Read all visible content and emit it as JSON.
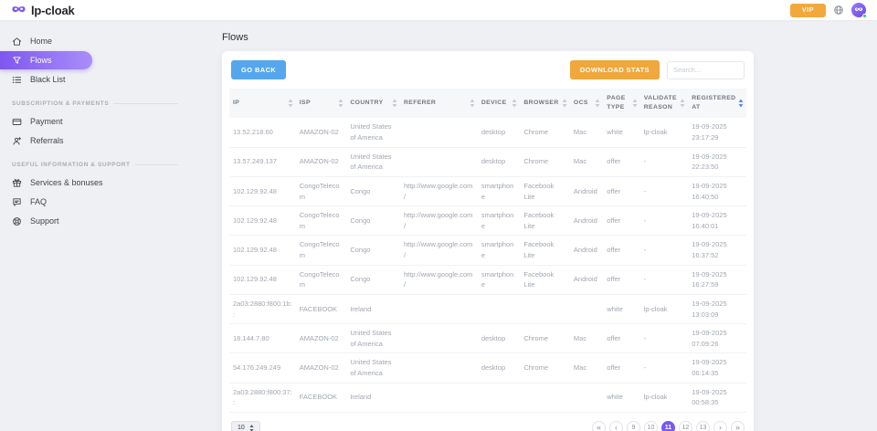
{
  "topbar": {
    "logo": {
      "text": "lp-cloak",
      "icon": "mask-icon"
    },
    "vip_label": "VIP",
    "language_icon": "globe-icon",
    "avatar": {
      "icon": "mask-icon",
      "online": true
    }
  },
  "sidebar": {
    "sections": [
      {
        "title": "",
        "items": [
          {
            "label": "Home",
            "icon": "home-icon",
            "active": false
          },
          {
            "label": "Flows",
            "icon": "flows-icon",
            "active": true
          },
          {
            "label": "Black List",
            "icon": "list-icon",
            "active": false
          }
        ]
      },
      {
        "title": "Subscription & Payments",
        "items": [
          {
            "label": "Payment",
            "icon": "payment-icon",
            "active": false
          },
          {
            "label": "Referrals",
            "icon": "referrals-icon",
            "active": false
          }
        ]
      },
      {
        "title": "Useful information & support",
        "items": [
          {
            "label": "Services & bonuses",
            "icon": "services-icon",
            "active": false
          },
          {
            "label": "FAQ",
            "icon": "faq-icon",
            "active": false
          },
          {
            "label": "Support",
            "icon": "support-icon",
            "active": false
          }
        ]
      }
    ]
  },
  "main": {
    "page_title": "Flows",
    "toolbar": {
      "go_back_label": "GO BACK",
      "download_stats_label": "DOWNLOAD STATS",
      "search_placeholder": "Search..."
    },
    "table": {
      "columns": [
        {
          "label": "IP",
          "sort_active": false
        },
        {
          "label": "ISP",
          "sort_active": false
        },
        {
          "label": "Country",
          "sort_active": false
        },
        {
          "label": "Referer",
          "sort_active": false
        },
        {
          "label": "Device",
          "sort_active": false
        },
        {
          "label": "Browser",
          "sort_active": false
        },
        {
          "label": "OCS",
          "sort_active": false
        },
        {
          "label": "Page Type",
          "sort_active": false
        },
        {
          "label": "Validate Reason",
          "sort_active": false
        },
        {
          "label": "Registered At",
          "sort_active": true
        }
      ],
      "rows": [
        [
          "13.52.218.60",
          "AMAZON-02",
          "United States of America",
          "",
          "desktop",
          "Chrome",
          "Mac",
          "white",
          "lp-cloak",
          "19-09-2025 23:17:29"
        ],
        [
          "13.57.249.137",
          "AMAZON-02",
          "United States of America",
          "",
          "desktop",
          "Chrome",
          "Mac",
          "offer",
          "-",
          "19-09-2025 22:23:50"
        ],
        [
          "102.129.92.48",
          "CongoTelecom",
          "Congo",
          "http://www.google.com/",
          "smartphone",
          "Facebook Lite",
          "Android",
          "offer",
          "-",
          "19-09-2025 16:40:50"
        ],
        [
          "102.129.92.48",
          "CongoTelecom",
          "Congo",
          "http://www.google.com/",
          "smartphone",
          "Facebook Lite",
          "Android",
          "offer",
          "-",
          "19-09-2025 16:40:01"
        ],
        [
          "102.129.92.48",
          "CongoTelecom",
          "Congo",
          "http://www.google.com/",
          "smartphone",
          "Facebook Lite",
          "Android",
          "offer",
          "-",
          "19-09-2025 16:37:52"
        ],
        [
          "102.129.92.48",
          "CongoTelecom",
          "Congo",
          "http://www.google.com/",
          "smartphone",
          "Facebook Lite",
          "Android",
          "offer",
          "-",
          "19-09-2025 16:27:59"
        ],
        [
          "2a03:2880:f800:1b::",
          "FACEBOOK",
          "Ireland",
          "",
          "",
          "",
          "",
          "white",
          "lp-cloak",
          "19-09-2025 13:03:09"
        ],
        [
          "18.144.7.80",
          "AMAZON-02",
          "United States of America",
          "",
          "desktop",
          "Chrome",
          "Mac",
          "offer",
          "-",
          "19-09-2025 07:09:26"
        ],
        [
          "54.176.249.249",
          "AMAZON-02",
          "United States of America",
          "",
          "desktop",
          "Chrome",
          "Mac",
          "offer",
          "-",
          "19-09-2025 06:14:35"
        ],
        [
          "2a03:2880:f800:37::",
          "FACEBOOK",
          "Ireland",
          "",
          "",
          "",
          "",
          "white",
          "lp-cloak",
          "19-09-2025 00:58:35"
        ]
      ]
    },
    "footer": {
      "page_size": "10",
      "pagination": {
        "first": "«",
        "prev": "‹",
        "pages": [
          "9",
          "10",
          "11",
          "12",
          "13"
        ],
        "active": "11",
        "next": "›",
        "last": "»"
      }
    }
  },
  "colors": {
    "accent_purple": "#7a56f2",
    "gradient_purple_start": "#7e57ef",
    "gradient_purple_end": "#a98ef9",
    "go_back_blue": "#55a6ec",
    "download_orange": "#f0a73c",
    "vip_orange": "#f3a83b",
    "online_green": "#35c56d",
    "sort_active_blue": "#4f7df0"
  }
}
